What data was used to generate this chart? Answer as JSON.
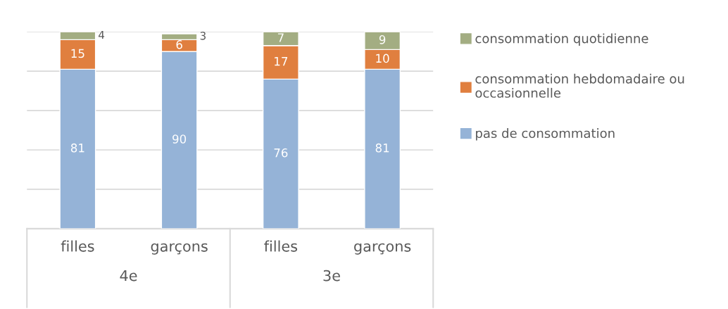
{
  "chart_data": {
    "type": "bar",
    "stacked": true,
    "categories": [
      "filles",
      "garçons",
      "filles",
      "garçons"
    ],
    "series": [
      {
        "name": "pas de consommation",
        "color": "#95b3d7",
        "values": [
          81,
          90,
          76,
          81
        ]
      },
      {
        "name": "consommation hebdomadaire ou occasionnelle",
        "color": "#e07f3f",
        "values": [
          15,
          6,
          17,
          10
        ]
      },
      {
        "name": "consommation quotidienne",
        "color": "#a3ad82",
        "values": [
          4,
          3,
          7,
          9
        ]
      }
    ],
    "ylim": [
      0,
      100
    ],
    "yticks": [
      {
        "value": 0,
        "label": null
      },
      {
        "value": 20,
        "label": null
      },
      {
        "value": 40,
        "label": null
      },
      {
        "value": 60,
        "label": null
      },
      {
        "value": 80,
        "label": null
      },
      {
        "value": 100,
        "label": null
      }
    ],
    "grid": "y",
    "legend": "right",
    "data_labels": true,
    "tick_labels": "x",
    "annotations": [
      "4e",
      "3e"
    ]
  }
}
